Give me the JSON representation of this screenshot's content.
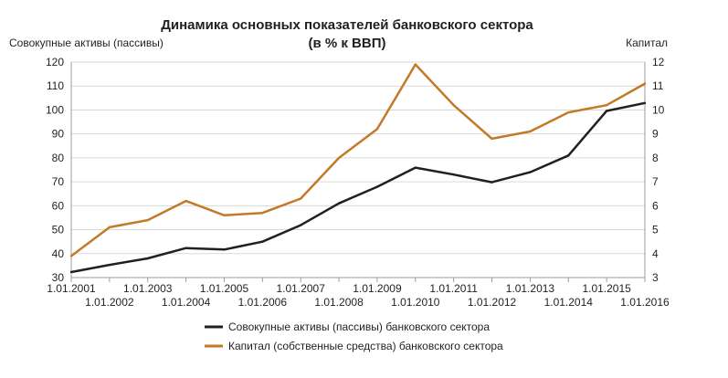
{
  "chart_data": {
    "type": "line",
    "title": "Динамика основных показателей банковского сектора",
    "subtitle": "(в % к ВВП)",
    "ylabel": "Совокупные активы (пассивы)",
    "y2label": "Капитал",
    "ylim": [
      30,
      120
    ],
    "y2lim": [
      3,
      12
    ],
    "yticks": [
      30,
      40,
      50,
      60,
      70,
      80,
      90,
      100,
      110,
      120
    ],
    "y2ticks": [
      3,
      4,
      5,
      6,
      7,
      8,
      9,
      10,
      11,
      12
    ],
    "categories": [
      "1.01.2001",
      "1.01.2002",
      "1.01.2003",
      "1.01.2004",
      "1.01.2005",
      "1.01.2006",
      "1.01.2007",
      "1.01.2008",
      "1.01.2009",
      "1.01.2010",
      "1.01.2011",
      "1.01.2012",
      "1.01.2013",
      "1.01.2014",
      "1.01.2015",
      "1.01.2016"
    ],
    "grid": true,
    "legend_position": "bottom",
    "series": [
      {
        "name": "Совокупные активы (пассивы) банковского сектора",
        "axis": "left",
        "color": "#231f20",
        "values": [
          32.3,
          35.3,
          38.0,
          42.3,
          41.7,
          45.0,
          51.9,
          61.0,
          67.9,
          75.9,
          73.0,
          69.8,
          74.0,
          81.0,
          99.6,
          102.9
        ]
      },
      {
        "name": "Капитал (собственные средства) банковского сектора",
        "axis": "right",
        "color": "#c27a27",
        "values": [
          3.9,
          5.1,
          5.4,
          6.2,
          5.6,
          5.7,
          6.3,
          8.0,
          9.2,
          11.9,
          10.2,
          8.8,
          9.1,
          9.9,
          10.2,
          11.1
        ]
      }
    ]
  }
}
